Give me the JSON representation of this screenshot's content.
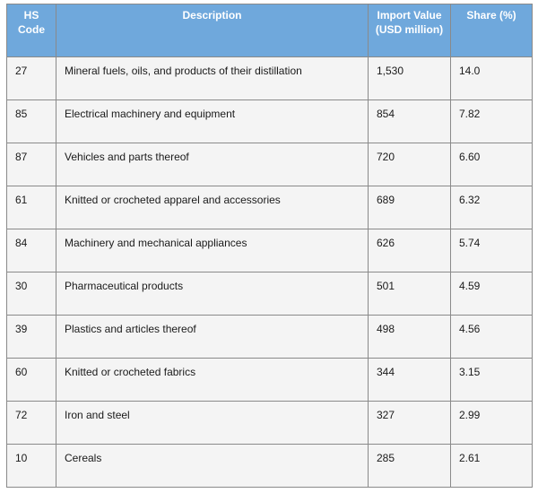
{
  "table": {
    "headers": {
      "code": "HS Code",
      "description": "Description",
      "value": "Import Value (USD million)",
      "share": "Share (%)"
    },
    "rows": [
      {
        "code": "27",
        "description": "Mineral fuels, oils, and products of their distillation",
        "value": "1,530",
        "share": "14.0"
      },
      {
        "code": "85",
        "description": "Electrical machinery and equipment",
        "value": "854",
        "share": "7.82"
      },
      {
        "code": "87",
        "description": "Vehicles and parts thereof",
        "value": "720",
        "share": "6.60"
      },
      {
        "code": "61",
        "description": "Knitted or crocheted apparel and accessories",
        "value": "689",
        "share": "6.32"
      },
      {
        "code": "84",
        "description": "Machinery and mechanical appliances",
        "value": "626",
        "share": "5.74"
      },
      {
        "code": "30",
        "description": "Pharmaceutical products",
        "value": "501",
        "share": "4.59"
      },
      {
        "code": "39",
        "description": "Plastics and articles thereof",
        "value": "498",
        "share": "4.56"
      },
      {
        "code": "60",
        "description": "Knitted or crocheted fabrics",
        "value": "344",
        "share": "3.15"
      },
      {
        "code": "72",
        "description": "Iron and steel",
        "value": "327",
        "share": "2.99"
      },
      {
        "code": "10",
        "description": "Cereals",
        "value": "285",
        "share": "2.61"
      }
    ]
  }
}
